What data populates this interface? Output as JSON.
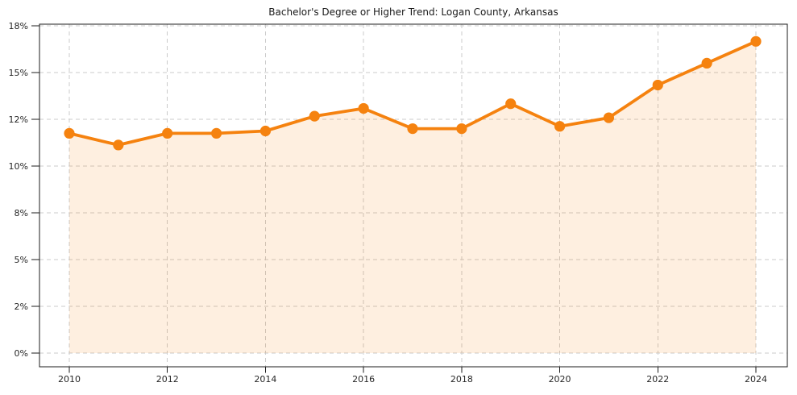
{
  "chart_data": {
    "type": "line",
    "title": "Bachelor's Degree or Higher Trend: Logan County, Arkansas",
    "x": [
      2010,
      2011,
      2012,
      2013,
      2014,
      2015,
      2016,
      2017,
      2018,
      2019,
      2020,
      2021,
      2022,
      2023,
      2024
    ],
    "values": [
      11.4,
      10.9,
      11.4,
      11.4,
      11.5,
      12.2,
      12.7,
      11.6,
      11.6,
      13.0,
      11.7,
      12.1,
      14.2,
      15.6,
      17.0
    ],
    "xlabel": "",
    "ylabel": "",
    "ylim": [
      0,
      18
    ],
    "y_tick_values": [
      18,
      15,
      12,
      10,
      8,
      5,
      2,
      0
    ],
    "y_tick_labels": [
      "18%",
      "15%",
      "12%",
      "10%",
      "8%",
      "5%",
      "2%",
      "0%"
    ],
    "x_tick_years": [
      2010,
      2012,
      2014,
      2016,
      2018,
      2020,
      2022,
      2024
    ],
    "x_tick_labels": [
      "2010",
      "2012",
      "2014",
      "2016",
      "2018",
      "2020",
      "2022",
      "2024"
    ],
    "grid": true,
    "legend_position": "none",
    "marker": "circle",
    "colors": {
      "line": "#f5820f",
      "marker": "#f5820f",
      "area_fill": "#f5820f",
      "area_fill_opacity": 0.13,
      "gridline": "#cbcbcb",
      "spine": "#1c1c1c",
      "tick_text": "#262626",
      "title_text": "#1a1a1a",
      "background": "#ffffff"
    }
  }
}
